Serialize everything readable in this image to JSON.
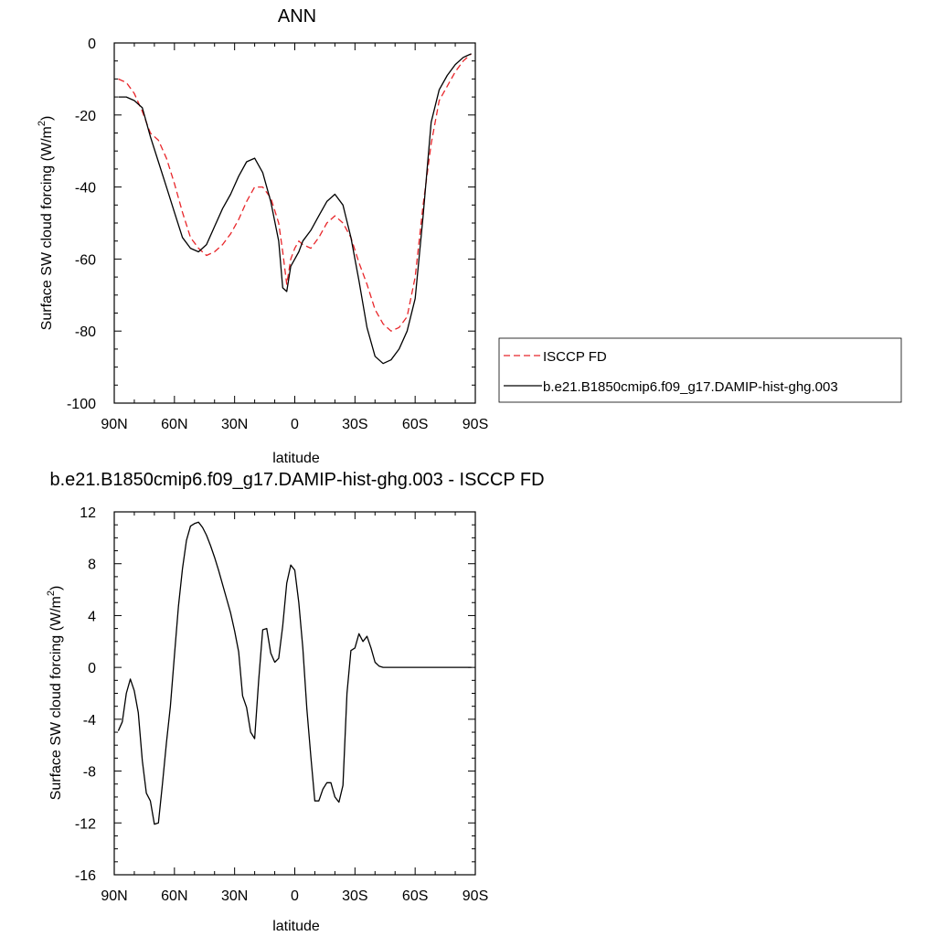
{
  "chart_data": [
    {
      "type": "line",
      "title": "ANN",
      "xlabel": "latitude",
      "ylabel": "Surface SW cloud forcing (W/m",
      "ylabel_sup": "2",
      "ylabel_close": ")",
      "xlim": [
        90,
        -90
      ],
      "ylim": [
        -100,
        0
      ],
      "xticks": [
        90,
        60,
        30,
        0,
        -30,
        -60,
        -90
      ],
      "xtick_labels": [
        "90N",
        "60N",
        "30N",
        "0",
        "30S",
        "60S",
        "90S"
      ],
      "yticks": [
        0,
        -20,
        -40,
        -60,
        -80,
        -100
      ],
      "ytick_labels": [
        "0",
        "-20",
        "-40",
        "-60",
        "-80",
        "-100"
      ],
      "grid": false,
      "legend": "right",
      "series": [
        {
          "name": "ISCCP FD",
          "color": "#e8262a",
          "dash": "dashed",
          "x": [
            88,
            84,
            80,
            76,
            72,
            68,
            64,
            60,
            56,
            52,
            48,
            44,
            40,
            36,
            32,
            28,
            24,
            20,
            16,
            12,
            8,
            6,
            4,
            2,
            0,
            -2,
            -4,
            -8,
            -12,
            -16,
            -20,
            -24,
            -28,
            -32,
            -36,
            -40,
            -44,
            -48,
            -52,
            -56,
            -60,
            -64,
            -68,
            -72,
            -76,
            -80,
            -84,
            -88
          ],
          "y": [
            -10,
            -11,
            -14,
            -19,
            -25,
            -27,
            -32,
            -39,
            -47,
            -54,
            -57,
            -59,
            -58,
            -56,
            -53,
            -49,
            -44,
            -40,
            -40,
            -43,
            -50,
            -58,
            -67,
            -60,
            -57,
            -55,
            -56,
            -57,
            -54,
            -50,
            -48,
            -50,
            -54,
            -61,
            -67,
            -74,
            -78,
            -80,
            -79,
            -76,
            -65,
            -45,
            -28,
            -16,
            -12,
            -8,
            -5,
            -3
          ]
        },
        {
          "name": "b.e21.B1850cmip6.f09_g17.DAMIP-hist-ghg.003",
          "color": "#000000",
          "dash": "solid",
          "x": [
            88,
            84,
            80,
            76,
            72,
            68,
            64,
            60,
            56,
            52,
            48,
            44,
            40,
            36,
            32,
            28,
            24,
            20,
            16,
            12,
            8,
            6,
            4,
            2,
            0,
            -2,
            -4,
            -8,
            -12,
            -16,
            -20,
            -24,
            -28,
            -32,
            -36,
            -40,
            -44,
            -48,
            -52,
            -56,
            -60,
            -64,
            -68,
            -72,
            -76,
            -80,
            -84,
            -88
          ],
          "y": [
            -15,
            -15,
            -16,
            -18,
            -26,
            -33,
            -40,
            -47,
            -54,
            -57,
            -58,
            -56,
            -51,
            -46,
            -42,
            -37,
            -33,
            -32,
            -36,
            -44,
            -55,
            -68,
            -69,
            -62,
            -60,
            -58,
            -55,
            -52,
            -48,
            -44,
            -42,
            -45,
            -54,
            -66,
            -79,
            -87,
            -89,
            -88,
            -85,
            -80,
            -71,
            -48,
            -22,
            -13,
            -9,
            -6,
            -4,
            -3
          ]
        }
      ]
    },
    {
      "type": "line",
      "title": "b.e21.B1850cmip6.f09_g17.DAMIP-hist-ghg.003 - ISCCP FD",
      "xlabel": "latitude",
      "ylabel": "Surface SW cloud forcing (W/m",
      "ylabel_sup": "2",
      "ylabel_close": ")",
      "xlim": [
        90,
        -90
      ],
      "ylim": [
        -16,
        12
      ],
      "xticks": [
        90,
        60,
        30,
        0,
        -30,
        -60,
        -90
      ],
      "xtick_labels": [
        "90N",
        "60N",
        "30N",
        "0",
        "30S",
        "60S",
        "90S"
      ],
      "yticks": [
        12,
        8,
        4,
        0,
        -4,
        -8,
        -12,
        -16
      ],
      "ytick_labels": [
        "12",
        "8",
        "4",
        "0",
        "-4",
        "-8",
        "-12",
        "-16"
      ],
      "grid": false,
      "series": [
        {
          "color": "#000000",
          "dash": "solid",
          "x": [
            88,
            86,
            84,
            82,
            80,
            78,
            76,
            74,
            72,
            70,
            68,
            66,
            64,
            62,
            60,
            58,
            56,
            54,
            52,
            50,
            48,
            46,
            44,
            42,
            40,
            38,
            36,
            34,
            32,
            30,
            28,
            26,
            24,
            22,
            20,
            18,
            16,
            14,
            12,
            10,
            8,
            6,
            4,
            2,
            0,
            -2,
            -4,
            -6,
            -8,
            -10,
            -12,
            -14,
            -16,
            -18,
            -20,
            -22,
            -24,
            -26,
            -28,
            -30,
            -32,
            -34,
            -36,
            -38,
            -40,
            -42,
            -44,
            -46,
            -48,
            -50,
            -52,
            -54,
            -56,
            -58,
            -60,
            -62,
            -64,
            -66,
            -68,
            -70,
            -72,
            -74,
            -76,
            -78,
            -80,
            -82,
            -84,
            -86,
            -88
          ],
          "y": [
            -4.9,
            -4.2,
            -2.0,
            -0.9,
            -1.8,
            -3.5,
            -7.2,
            -9.7,
            -10.3,
            -12.1,
            -12.0,
            -9.0,
            -5.8,
            -3.0,
            0.9,
            4.7,
            7.6,
            9.8,
            10.9,
            11.1,
            11.2,
            10.8,
            10.2,
            9.4,
            8.5,
            7.5,
            6.4,
            5.3,
            4.2,
            2.8,
            1.2,
            -2.2,
            -3.1,
            -5.0,
            -5.5,
            -1.0,
            2.9,
            3.0,
            1.1,
            0.4,
            0.7,
            3.2,
            6.5,
            7.9,
            7.5,
            5.0,
            1.5,
            -3.2,
            -6.9,
            -10.3,
            -10.3,
            -9.4,
            -8.9,
            -8.9,
            -10.0,
            -10.4,
            -9.1,
            -2.0,
            1.3,
            1.5,
            2.6,
            2.0,
            2.4,
            1.5,
            0.4,
            0.1,
            0.0,
            0.0,
            0.0,
            0.0,
            0.0,
            0.0,
            0.0,
            0.0,
            0.0,
            0.0,
            0.0,
            0.0,
            0.0,
            0.0,
            0.0,
            0.0,
            0.0,
            0.0,
            0.0,
            0.0,
            0.0,
            0.0,
            0.0
          ]
        }
      ]
    }
  ]
}
